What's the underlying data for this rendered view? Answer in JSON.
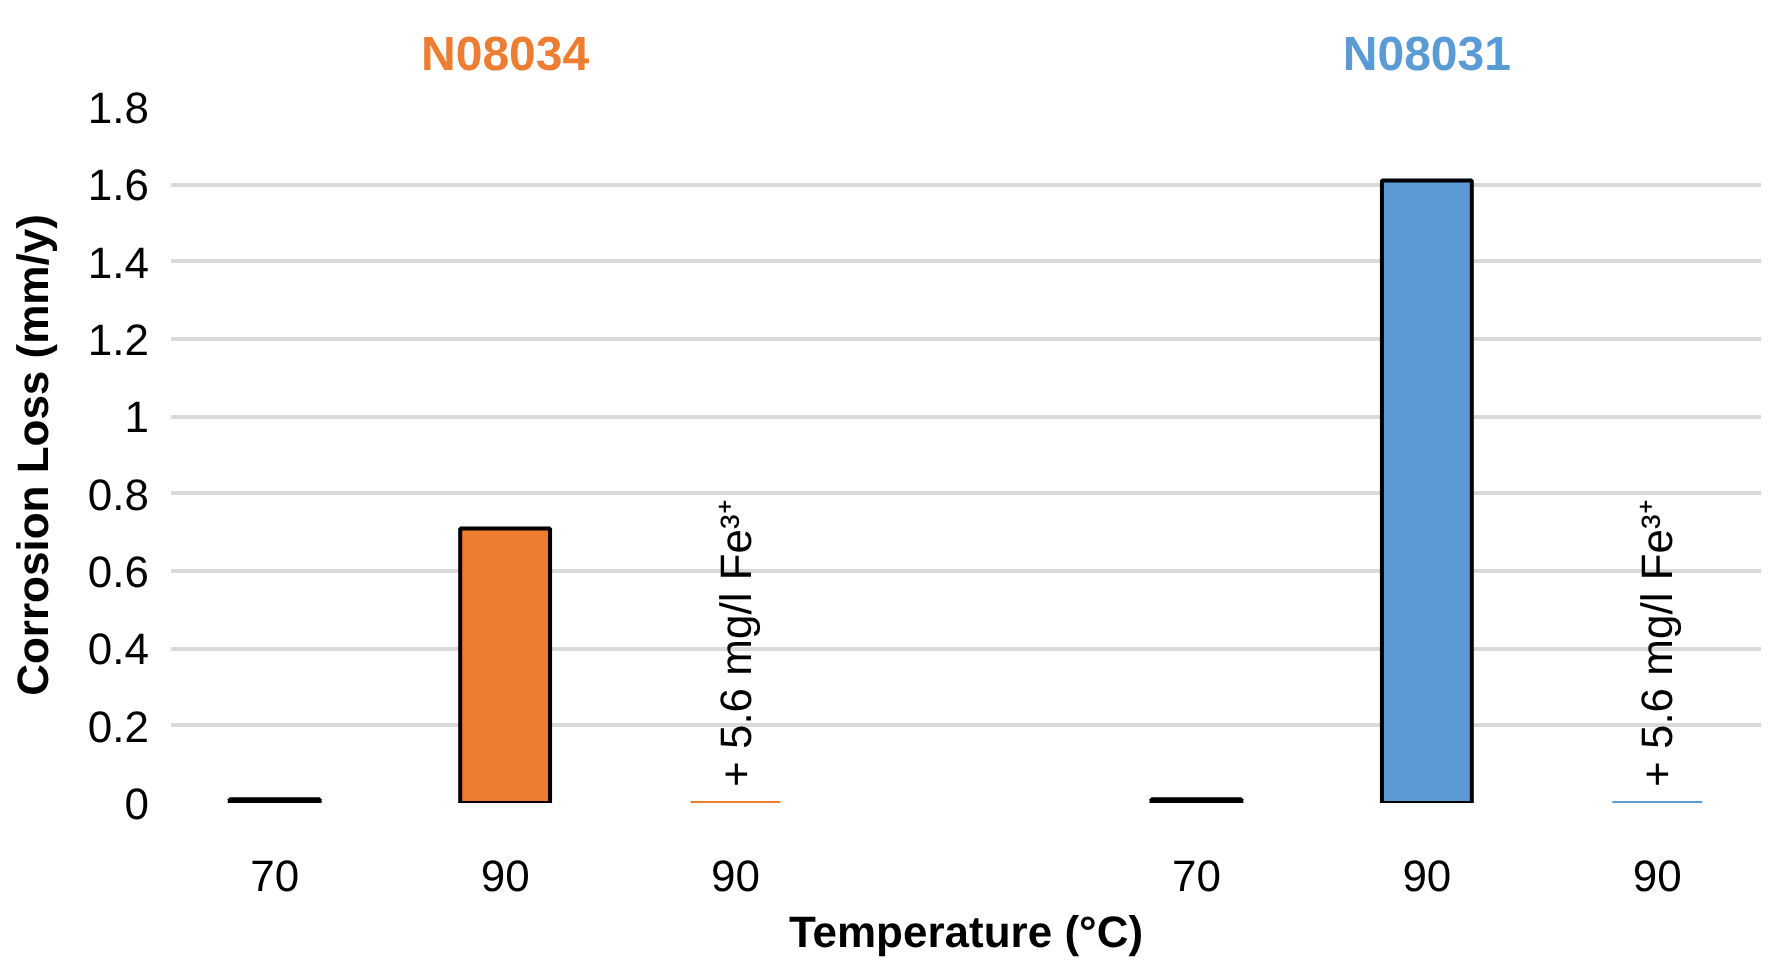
{
  "chart_data": {
    "type": "bar",
    "xlabel": "Temperature (°C)",
    "ylabel": "Corrosion Loss (mm/y)",
    "categories": [
      "70",
      "90",
      "90",
      null,
      "70",
      "90",
      "90"
    ],
    "series": [
      {
        "name": "N08034",
        "color": "#ed7d31",
        "values": [
          0.01,
          0.71,
          0,
          null,
          null,
          null,
          null
        ]
      },
      {
        "name": "N08031",
        "color": "#5b9bd5",
        "values": [
          null,
          null,
          null,
          null,
          0.01,
          1.61,
          0
        ]
      }
    ],
    "annotations": [
      "+ 5.6 mg/l Fe³⁺",
      "+ 5.6 mg/l Fe³⁺"
    ],
    "ylim": [
      0,
      1.8
    ],
    "yticks": [
      0,
      0.2,
      0.4,
      0.6,
      0.8,
      1,
      1.2,
      1.4,
      1.6,
      1.8
    ],
    "grid": "y",
    "legend": false
  }
}
